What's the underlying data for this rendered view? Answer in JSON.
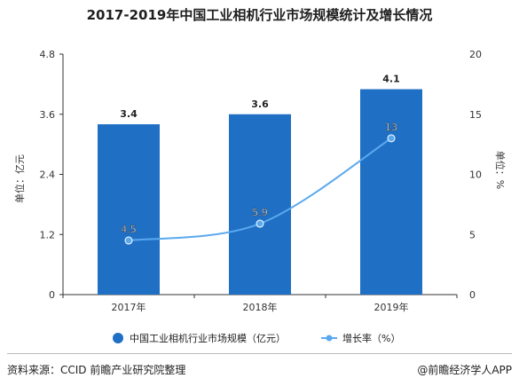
{
  "title": "2017-2019年中国工业相机行业市场规模统计及增长情况",
  "chart_data": {
    "type": "bar",
    "categories": [
      "2017年",
      "2018年",
      "2019年"
    ],
    "series": [
      {
        "name": "中国工业相机行业市场规模（亿元）",
        "type": "bar",
        "axis": "left",
        "values": [
          3.4,
          3.6,
          4.1
        ],
        "color": "#1f6fc5"
      },
      {
        "name": "增长率（%）",
        "type": "line",
        "axis": "right",
        "values": [
          4.5,
          5.9,
          13
        ],
        "color": "#5aa9ee"
      }
    ],
    "ylabel": "单位：亿元",
    "y2label": "单位：%",
    "ylim": [
      0,
      4.8
    ],
    "y2lim": [
      0,
      20
    ],
    "yticks": [
      "0",
      "1.2",
      "2.4",
      "3.6",
      "4.8"
    ],
    "y2ticks": [
      "0",
      "5",
      "10",
      "15",
      "20"
    ],
    "bar_labels": [
      "3.4",
      "3.6",
      "4.1"
    ],
    "line_labels": [
      "4.5",
      "5.9",
      "13"
    ],
    "legend_position": "bottom",
    "grid": false
  },
  "source": "资料来源：CCID 前瞻产业研究院整理",
  "brand": "@前瞻经济学人APP"
}
